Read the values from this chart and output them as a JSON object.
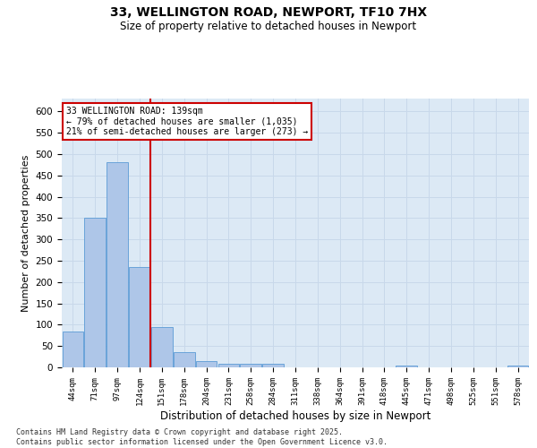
{
  "title1": "33, WELLINGTON ROAD, NEWPORT, TF10 7HX",
  "title2": "Size of property relative to detached houses in Newport",
  "xlabel": "Distribution of detached houses by size in Newport",
  "ylabel": "Number of detached properties",
  "footnote": "Contains HM Land Registry data © Crown copyright and database right 2025.\nContains public sector information licensed under the Open Government Licence v3.0.",
  "categories": [
    "44sqm",
    "71sqm",
    "97sqm",
    "124sqm",
    "151sqm",
    "178sqm",
    "204sqm",
    "231sqm",
    "258sqm",
    "284sqm",
    "311sqm",
    "338sqm",
    "364sqm",
    "391sqm",
    "418sqm",
    "445sqm",
    "471sqm",
    "498sqm",
    "525sqm",
    "551sqm",
    "578sqm"
  ],
  "values": [
    83,
    350,
    480,
    235,
    95,
    35,
    15,
    8,
    8,
    8,
    0,
    0,
    0,
    0,
    0,
    5,
    0,
    0,
    0,
    0,
    5
  ],
  "bar_color": "#aec6e8",
  "bar_edge_color": "#5b9bd5",
  "grid_color": "#c8d8ea",
  "bg_color": "#dce9f5",
  "annotation_text": "33 WELLINGTON ROAD: 139sqm\n← 79% of detached houses are smaller (1,035)\n21% of semi-detached houses are larger (273) →",
  "vline_x": 3.5,
  "vline_color": "#cc0000",
  "annotation_box_color": "#cc0000",
  "ylim": [
    0,
    630
  ],
  "yticks": [
    0,
    50,
    100,
    150,
    200,
    250,
    300,
    350,
    400,
    450,
    500,
    550,
    600
  ]
}
